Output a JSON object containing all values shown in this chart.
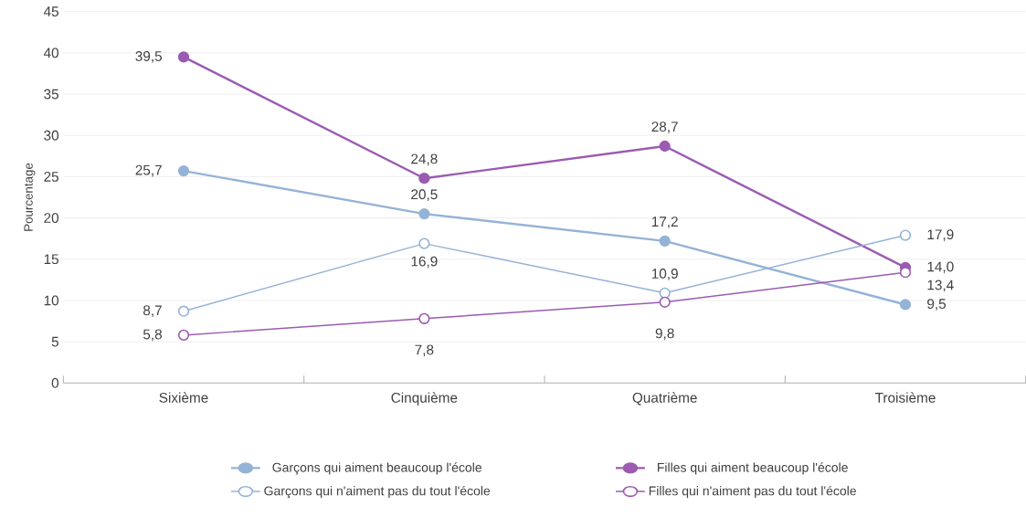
{
  "chart_data": {
    "type": "line",
    "ylabel": "Pourcentage",
    "categories": [
      "Sixième",
      "Cinquième",
      "Quatrième",
      "Troisième"
    ],
    "series": [
      {
        "name": "Garçons qui aiment beaucoup l'école",
        "color": "#95b3d7",
        "marker": "circle",
        "values": [
          25.7,
          20.5,
          17.2,
          9.5
        ],
        "value_labels": [
          "25,7",
          "20,5",
          "17,2",
          "9,5"
        ]
      },
      {
        "name": "Filles qui aiment beaucoup l'école",
        "color": "#9b5bb0",
        "marker": "circle",
        "values": [
          39.5,
          24.8,
          28.7,
          14.0
        ],
        "value_labels": [
          "39,5",
          "24,8",
          "28,7",
          "14,0"
        ]
      },
      {
        "name": "Garçons qui n'aiment pas du tout l'école",
        "color": "#95b3d7",
        "marker": "circle-open",
        "values": [
          8.7,
          16.9,
          10.9,
          17.9
        ],
        "value_labels": [
          "8,7",
          "16,9",
          "10,9",
          "17,9"
        ]
      },
      {
        "name": "Filles qui n'aiment pas du tout l'école",
        "color": "#9b5bb0",
        "marker": "circle-open",
        "values": [
          5.8,
          7.8,
          9.8,
          13.4
        ],
        "value_labels": [
          "5,8",
          "7,8",
          "9,8",
          "13,4"
        ]
      }
    ],
    "ylim": [
      0,
      45
    ],
    "yticks": [
      0,
      5,
      10,
      15,
      20,
      25,
      30,
      35,
      40,
      45
    ],
    "grid": "y",
    "legend": "bottom"
  }
}
